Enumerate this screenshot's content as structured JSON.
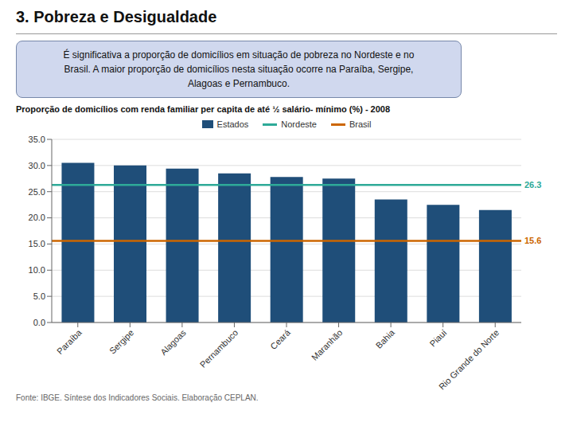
{
  "chart_data": {
    "type": "bar",
    "title": "3. Pobreza e Desigualdade",
    "subtitle": "É significativa a proporção de domicílios em situação de pobreza no Nordeste e no\nBrasil. A maior proporção de domicílios nesta situação ocorre na Paraíba, Sergipe,\nAlagoas e Pernambuco.",
    "annotations": [
      "Proporção de domicílios com renda familiar per capita de até ½  salário- mínimo (%) - 2008",
      "Fonte: IBGE. Síntese dos Indicadores Sociais. Elaboração CEPLAN."
    ],
    "categories": [
      "Paraíba",
      "Sergipe",
      "Alagoas",
      "Pernambuco",
      "Ceará",
      "Maranhão",
      "Bahia",
      "Piauí",
      "Rio Grande do Norte"
    ],
    "series": [
      {
        "name": "Estados",
        "type": "bar",
        "color": "#1F4E79",
        "values": [
          30.5,
          30.0,
          29.4,
          28.5,
          27.8,
          27.5,
          23.5,
          22.5,
          21.5
        ]
      }
    ],
    "reference_lines": [
      {
        "name": "Nordeste",
        "value": 26.3,
        "color": "#2EAA98"
      },
      {
        "name": "Brasil",
        "value": 15.6,
        "color": "#CC6600"
      }
    ],
    "ylim": [
      0,
      35
    ],
    "yticks": [
      {
        "value": 0,
        "label": "0.0"
      },
      {
        "value": 5,
        "label": "5.0"
      },
      {
        "value": 10,
        "label": "10.0"
      },
      {
        "value": 15,
        "label": "15.0"
      },
      {
        "value": 20,
        "label": "20.0"
      },
      {
        "value": 25,
        "label": "25.0"
      },
      {
        "value": 30,
        "label": "30.0"
      },
      {
        "value": 35,
        "label": "35.0"
      }
    ],
    "grid": true,
    "legend": "top"
  }
}
